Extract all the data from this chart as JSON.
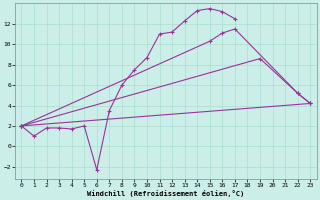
{
  "xlabel": "Windchill (Refroidissement éolien,°C)",
  "bg_color": "#cceee8",
  "grid_color": "#aaddcc",
  "line_color": "#993399",
  "xlim": [
    -0.5,
    23.5
  ],
  "ylim": [
    -3.2,
    14.0
  ],
  "xticks": [
    0,
    1,
    2,
    3,
    4,
    5,
    6,
    7,
    8,
    9,
    10,
    11,
    12,
    13,
    14,
    15,
    16,
    17,
    18,
    19,
    20,
    21,
    22,
    23
  ],
  "yticks": [
    -2,
    0,
    2,
    4,
    6,
    8,
    10,
    12
  ],
  "line1_x": [
    0,
    1,
    2,
    3,
    4,
    5,
    6,
    7,
    8,
    9,
    10,
    11,
    12,
    13,
    14,
    15,
    16,
    17
  ],
  "line1_y": [
    2.0,
    1.0,
    1.8,
    1.8,
    1.7,
    2.0,
    -2.3,
    3.5,
    6.0,
    7.5,
    8.7,
    11.0,
    11.2,
    12.3,
    13.3,
    13.5,
    13.2,
    12.5
  ],
  "line2_x": [
    0,
    15,
    16,
    17,
    22,
    23
  ],
  "line2_y": [
    2.0,
    10.3,
    11.1,
    11.5,
    5.2,
    4.2
  ],
  "line3_x": [
    0,
    19,
    22,
    23
  ],
  "line3_y": [
    2.0,
    8.6,
    5.2,
    4.2
  ],
  "line4_x": [
    0,
    23
  ],
  "line4_y": [
    2.0,
    4.2
  ]
}
